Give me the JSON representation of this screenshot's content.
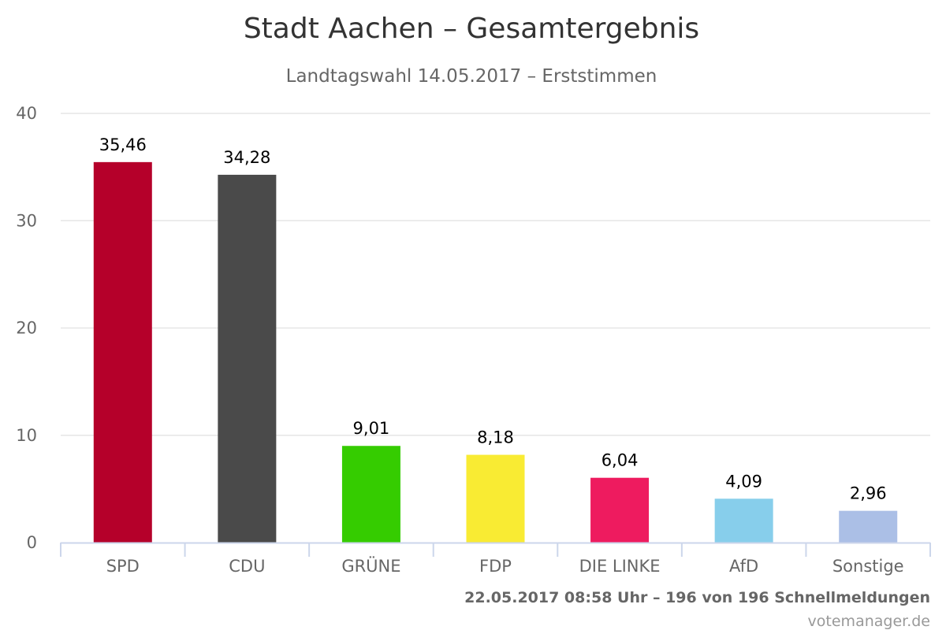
{
  "chart_data": {
    "type": "bar",
    "title": "Stadt Aachen – Gesamtergebnis",
    "subtitle": "Landtagswahl 14.05.2017 – Erststimmen",
    "categories": [
      "SPD",
      "CDU",
      "GRÜNE",
      "FDP",
      "DIE LINKE",
      "AfD",
      "Sonstige"
    ],
    "values": [
      35.46,
      34.28,
      9.01,
      8.18,
      6.04,
      4.09,
      2.96
    ],
    "value_labels": [
      "35,46",
      "34,28",
      "9,01",
      "8,18",
      "6,04",
      "4,09",
      "2,96"
    ],
    "colors": [
      "#b5002a",
      "#4a4a4a",
      "#35cc00",
      "#f9eb33",
      "#ee1b5f",
      "#87ceeb",
      "#abbfe6"
    ],
    "ylim": [
      0,
      40
    ],
    "yticks": [
      0,
      10,
      20,
      30,
      40
    ],
    "grid": true,
    "xlabel": "",
    "ylabel": ""
  },
  "footer": {
    "status": "22.05.2017 08:58 Uhr – 196 von 196 Schnellmeldungen",
    "credit": "votemanager.de"
  }
}
